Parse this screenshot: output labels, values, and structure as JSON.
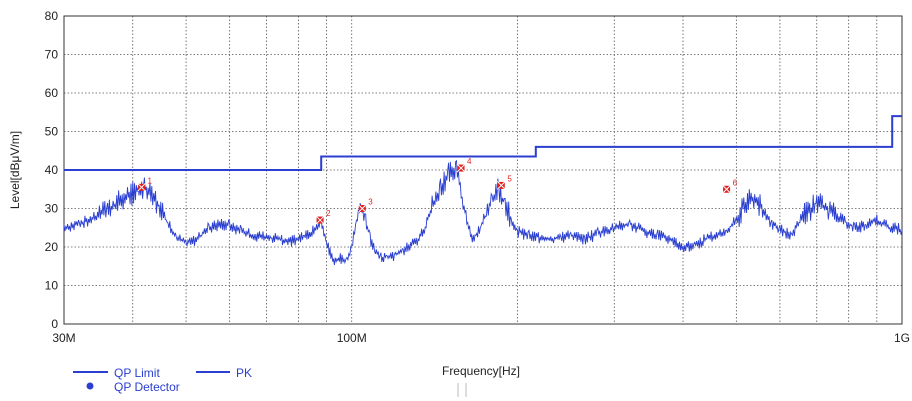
{
  "chart_data": {
    "type": "line",
    "xscale": "log",
    "xlim": [
      30,
      1000
    ],
    "ylim": [
      0,
      80
    ],
    "xlabel": "Frequency[Hz]",
    "ylabel": "Level[dBμV/m]",
    "grid": true,
    "y_ticks": [
      0,
      10,
      20,
      30,
      40,
      50,
      60,
      70,
      80
    ],
    "x_tick_labels": [
      {
        "value": 30,
        "label": "30M"
      },
      {
        "value": 100,
        "label": "100M"
      },
      {
        "value": 1000,
        "label": "1G"
      }
    ],
    "minor_x_gridlines": [
      40,
      50,
      60,
      70,
      80,
      90,
      200,
      300,
      400,
      500,
      600,
      700,
      800,
      900
    ],
    "colors": {
      "trace": "#2a3fd0",
      "marker": "#e02020",
      "grid": "#555555",
      "text": "#222222"
    },
    "series": [
      {
        "name": "QP Limit",
        "style": "step",
        "x": [
          30,
          88,
          88,
          216,
          216,
          960,
          960,
          1000
        ],
        "y": [
          40,
          40,
          43.5,
          43.5,
          46,
          46,
          54,
          54
        ]
      },
      {
        "name": "PK",
        "style": "line",
        "x": [
          30,
          32,
          34,
          36,
          38,
          40,
          42,
          44,
          46,
          48,
          50,
          52,
          55,
          58,
          60,
          63,
          66,
          70,
          74,
          78,
          82,
          85,
          88,
          90,
          92,
          94,
          96,
          98,
          100,
          102,
          104,
          106,
          108,
          110,
          113,
          116,
          120,
          124,
          128,
          132,
          136,
          140,
          145,
          150,
          155,
          160,
          165,
          170,
          175,
          180,
          185,
          190,
          195,
          200,
          210,
          220,
          230,
          240,
          250,
          265,
          280,
          300,
          320,
          340,
          360,
          380,
          400,
          420,
          440,
          460,
          480,
          500,
          520,
          540,
          560,
          580,
          600,
          630,
          660,
          700,
          740,
          780,
          820,
          860,
          900,
          950,
          1000
        ],
        "y": [
          25,
          26,
          27.5,
          29.5,
          32,
          34,
          35,
          32,
          27,
          22.5,
          21,
          21.5,
          25,
          26,
          25.5,
          24,
          23,
          22.5,
          22,
          21.5,
          22.5,
          24,
          26.5,
          21,
          17,
          16.5,
          17,
          16.5,
          20,
          27,
          30,
          27,
          22,
          19,
          17,
          17.5,
          18,
          19,
          20.5,
          22,
          25,
          31,
          35.5,
          39,
          40.5,
          30,
          22,
          24,
          28,
          33,
          35,
          31,
          27,
          24,
          23,
          22.5,
          22,
          22.5,
          23,
          22,
          23.5,
          25,
          26,
          24,
          23,
          22,
          20,
          20.5,
          22,
          23,
          24,
          27,
          31.5,
          33,
          29,
          26,
          24.5,
          23,
          28,
          31.5,
          29,
          27,
          25,
          25.5,
          27,
          25,
          24.5
        ]
      }
    ],
    "markers": {
      "name": "QP Detector",
      "points": [
        {
          "label": "1",
          "x": 41.5,
          "y": 35.5
        },
        {
          "label": "2",
          "x": 87.6,
          "y": 27
        },
        {
          "label": "3",
          "x": 104.5,
          "y": 30
        },
        {
          "label": "4",
          "x": 158,
          "y": 40.5
        },
        {
          "label": "5",
          "x": 187,
          "y": 36
        },
        {
          "label": "6",
          "x": 480,
          "y": 35
        }
      ]
    },
    "legend": {
      "position": "bottom-left",
      "items": [
        {
          "label": "QP Limit",
          "kind": "line"
        },
        {
          "label": "PK",
          "kind": "line"
        },
        {
          "label": "QP Detector",
          "kind": "dot"
        }
      ]
    }
  }
}
